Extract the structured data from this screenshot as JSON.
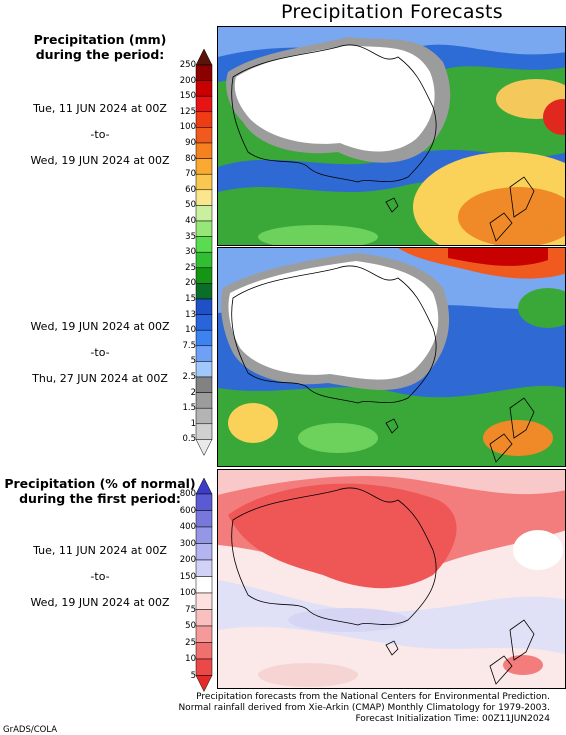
{
  "title": "Precipitation Forecasts",
  "colorbar_mm": {
    "title": [
      "Precipitation (mm)",
      "during the period:"
    ],
    "levels": [
      "250",
      "200",
      "150",
      "125",
      "100",
      "90",
      "80",
      "70",
      "60",
      "50",
      "40",
      "35",
      "30",
      "25",
      "20",
      "15",
      "13",
      "10",
      "7.5",
      "5",
      "2.5",
      "2",
      "1.5",
      "1",
      "0.5"
    ],
    "colors": [
      "#5a140a",
      "#8c0000",
      "#c80000",
      "#e61414",
      "#f03c14",
      "#f05a1e",
      "#f5821e",
      "#faaa32",
      "#fac850",
      "#fae68c",
      "#c8f0a0",
      "#96e678",
      "#5adc50",
      "#32be32",
      "#149614",
      "#0a6e28",
      "#1e50c8",
      "#2864dc",
      "#3c82f0",
      "#6ea0f5",
      "#a0c8fa",
      "#828282",
      "#9c9c9c",
      "#b4b4b4",
      "#d0d0d0",
      "#eaeaea"
    ]
  },
  "colorbar_pct": {
    "title": [
      "Precipitation (% of normal)",
      "during the first period:"
    ],
    "levels": [
      "800",
      "600",
      "400",
      "300",
      "200",
      "150",
      "100",
      "75",
      "50",
      "25",
      "10",
      "5"
    ],
    "colors": [
      "#3c3cc8",
      "#5a5ad2",
      "#7878dc",
      "#9696e6",
      "#b4b4f0",
      "#d2d2f8",
      "#ffffff",
      "#fde0e0",
      "#fac0c0",
      "#f59a9a",
      "#f07070",
      "#eb4848",
      "#e62828"
    ]
  },
  "period1": {
    "start": "Tue, 11 JUN 2024 at 00Z",
    "sep": "-to-",
    "end": "Wed, 19 JUN 2024 at 00Z"
  },
  "period2": {
    "start": "Wed, 19 JUN 2024 at 00Z",
    "sep": "-to-",
    "end": "Thu, 27 JUN 2024 at 00Z"
  },
  "period3": {
    "start": "Tue, 11 JUN 2024 at 00Z",
    "sep": "-to-",
    "end": "Wed, 19 JUN 2024 at 00Z"
  },
  "footer": {
    "line1": "Precipitation forecasts from the National Centers for Environmental Prediction.",
    "line2": "Normal rainfall derived from Xie-Arkin (CMAP) Monthly Climatology for 1979-2003.",
    "line3": "Forecast Initialization Time: 00Z11JUN2024"
  },
  "credit": "GrADS/COLA"
}
